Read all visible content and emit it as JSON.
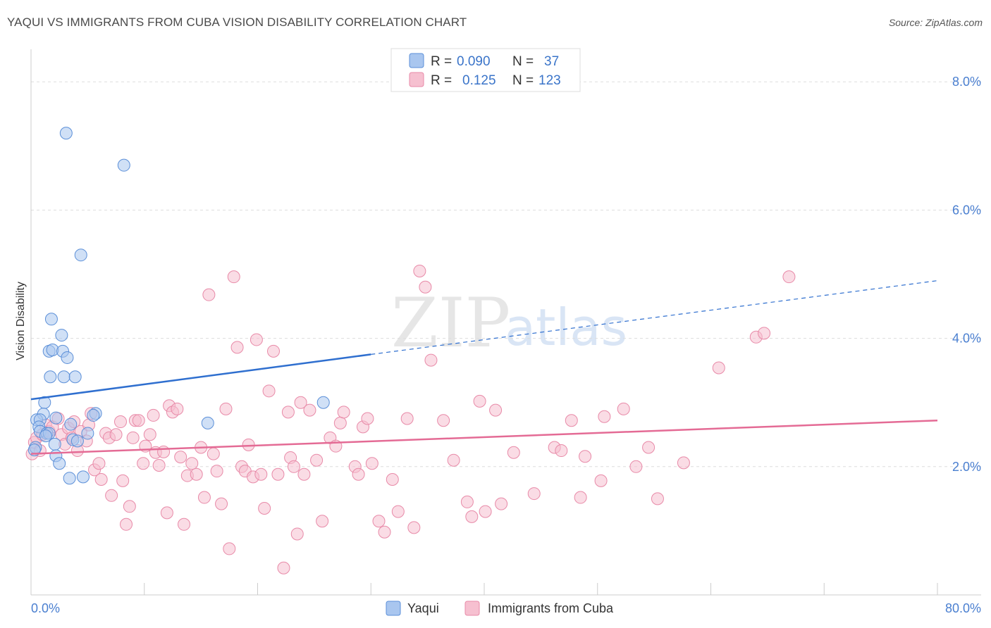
{
  "header": {
    "title": "YAQUI VS IMMIGRANTS FROM CUBA VISION DISABILITY CORRELATION CHART",
    "source": "Source: ZipAtlas.com"
  },
  "watermark": {
    "part1": "ZIP",
    "part2": "atlas"
  },
  "colors": {
    "blue_fill": "#a9c6ef",
    "blue_stroke": "#5b8fd8",
    "blue_line": "#2f6fcf",
    "pink_fill": "#f6c0d0",
    "pink_stroke": "#e88aa8",
    "pink_line": "#e46b95",
    "tick_text": "#4a7fd0"
  },
  "legend": {
    "rows": [
      {
        "r_label": "R =",
        "r_value": "0.090",
        "n_label": "N =",
        "n_value": "37",
        "series": "blue"
      },
      {
        "r_label": "R =",
        "r_value": "0.125",
        "n_label": "N =",
        "n_value": "123",
        "series": "pink"
      }
    ]
  },
  "chart_data": {
    "type": "scatter",
    "title": "YAQUI VS IMMIGRANTS FROM CUBA VISION DISABILITY CORRELATION CHART",
    "xlabel": "",
    "ylabel": "Vision Disability",
    "xlim": [
      0,
      80
    ],
    "ylim": [
      0,
      8.4
    ],
    "x_tick_labels": {
      "min": "0.0%",
      "max": "80.0%"
    },
    "y_ticks": [
      {
        "value": 2,
        "label": "2.0%"
      },
      {
        "value": 4,
        "label": "4.0%"
      },
      {
        "value": 6,
        "label": "6.0%"
      },
      {
        "value": 8,
        "label": "8.0%"
      }
    ],
    "series": [
      {
        "name": "Yaqui",
        "color": "blue",
        "trend": {
          "x0": 0,
          "y0": 3.05,
          "x1": 30,
          "y1": 3.75,
          "dash_to_x": 80,
          "dash_to_y": 4.9
        },
        "points": [
          [
            3.1,
            7.2
          ],
          [
            8.2,
            6.7
          ],
          [
            4.4,
            5.3
          ],
          [
            1.8,
            4.3
          ],
          [
            2.7,
            4.05
          ],
          [
            1.6,
            3.8
          ],
          [
            1.9,
            3.82
          ],
          [
            2.8,
            3.8
          ],
          [
            3.2,
            3.7
          ],
          [
            1.7,
            3.4
          ],
          [
            2.9,
            3.4
          ],
          [
            3.9,
            3.4
          ],
          [
            1.2,
            3.0
          ],
          [
            1.1,
            2.82
          ],
          [
            0.5,
            2.73
          ],
          [
            0.8,
            2.73
          ],
          [
            2.2,
            2.76
          ],
          [
            5.7,
            2.83
          ],
          [
            5.5,
            2.8
          ],
          [
            3.5,
            2.66
          ],
          [
            0.7,
            2.62
          ],
          [
            0.8,
            2.55
          ],
          [
            1.4,
            2.52
          ],
          [
            1.6,
            2.52
          ],
          [
            1.3,
            2.48
          ],
          [
            5.0,
            2.52
          ],
          [
            3.7,
            2.42
          ],
          [
            4.1,
            2.4
          ],
          [
            0.4,
            2.3
          ],
          [
            2.1,
            2.35
          ],
          [
            2.2,
            2.17
          ],
          [
            0.3,
            2.26
          ],
          [
            2.5,
            2.05
          ],
          [
            3.4,
            1.82
          ],
          [
            4.6,
            1.84
          ],
          [
            15.6,
            2.68
          ],
          [
            25.8,
            3.0
          ]
        ]
      },
      {
        "name": "Immigrants from Cuba",
        "color": "pink",
        "trend": {
          "x0": 0,
          "y0": 2.2,
          "x1": 80,
          "y1": 2.72
        },
        "points": [
          [
            0.1,
            2.2
          ],
          [
            0.3,
            2.38
          ],
          [
            0.5,
            2.45
          ],
          [
            0.8,
            2.25
          ],
          [
            1.0,
            2.5
          ],
          [
            1.3,
            2.65
          ],
          [
            1.6,
            2.55
          ],
          [
            1.9,
            2.62
          ],
          [
            2.4,
            2.75
          ],
          [
            2.7,
            2.5
          ],
          [
            3.0,
            2.35
          ],
          [
            3.3,
            2.6
          ],
          [
            3.6,
            2.45
          ],
          [
            3.8,
            2.7
          ],
          [
            4.1,
            2.25
          ],
          [
            4.4,
            2.55
          ],
          [
            4.9,
            2.4
          ],
          [
            5.1,
            2.65
          ],
          [
            5.3,
            2.83
          ],
          [
            5.6,
            1.95
          ],
          [
            6.0,
            2.05
          ],
          [
            6.2,
            1.8
          ],
          [
            6.6,
            2.52
          ],
          [
            6.9,
            2.45
          ],
          [
            7.1,
            1.55
          ],
          [
            7.5,
            2.5
          ],
          [
            7.9,
            2.7
          ],
          [
            8.1,
            1.78
          ],
          [
            8.4,
            1.1
          ],
          [
            8.7,
            1.38
          ],
          [
            9.0,
            2.45
          ],
          [
            9.2,
            2.72
          ],
          [
            9.5,
            2.72
          ],
          [
            9.9,
            2.05
          ],
          [
            10.1,
            2.32
          ],
          [
            10.5,
            2.5
          ],
          [
            10.8,
            2.8
          ],
          [
            11.0,
            2.22
          ],
          [
            11.3,
            2.02
          ],
          [
            11.7,
            2.23
          ],
          [
            12.0,
            1.28
          ],
          [
            12.2,
            2.95
          ],
          [
            12.5,
            2.85
          ],
          [
            12.9,
            2.9
          ],
          [
            13.2,
            2.15
          ],
          [
            13.5,
            1.1
          ],
          [
            13.8,
            1.86
          ],
          [
            14.2,
            2.05
          ],
          [
            14.6,
            1.88
          ],
          [
            15.0,
            2.3
          ],
          [
            15.3,
            1.52
          ],
          [
            15.7,
            4.68
          ],
          [
            16.1,
            2.2
          ],
          [
            16.4,
            1.93
          ],
          [
            16.8,
            1.42
          ],
          [
            17.2,
            2.9
          ],
          [
            17.5,
            0.72
          ],
          [
            17.9,
            4.96
          ],
          [
            18.2,
            3.86
          ],
          [
            18.6,
            2.0
          ],
          [
            18.9,
            1.93
          ],
          [
            19.2,
            2.34
          ],
          [
            19.6,
            1.84
          ],
          [
            19.9,
            3.98
          ],
          [
            20.3,
            1.88
          ],
          [
            20.6,
            1.35
          ],
          [
            21.0,
            3.18
          ],
          [
            21.4,
            3.8
          ],
          [
            21.8,
            1.88
          ],
          [
            22.3,
            0.42
          ],
          [
            22.7,
            2.85
          ],
          [
            22.9,
            2.14
          ],
          [
            23.2,
            2.0
          ],
          [
            23.5,
            0.95
          ],
          [
            23.8,
            3.0
          ],
          [
            24.1,
            1.88
          ],
          [
            24.6,
            2.88
          ],
          [
            25.2,
            2.1
          ],
          [
            25.7,
            1.15
          ],
          [
            26.4,
            2.45
          ],
          [
            26.9,
            2.32
          ],
          [
            27.3,
            2.68
          ],
          [
            27.6,
            2.85
          ],
          [
            28.6,
            2.0
          ],
          [
            28.9,
            1.88
          ],
          [
            29.3,
            2.62
          ],
          [
            29.7,
            2.75
          ],
          [
            30.1,
            2.05
          ],
          [
            30.7,
            1.15
          ],
          [
            31.2,
            0.98
          ],
          [
            31.9,
            1.8
          ],
          [
            32.4,
            1.3
          ],
          [
            33.2,
            2.75
          ],
          [
            33.8,
            1.05
          ],
          [
            34.3,
            5.05
          ],
          [
            34.8,
            4.8
          ],
          [
            35.3,
            3.66
          ],
          [
            36.4,
            2.72
          ],
          [
            37.3,
            2.1
          ],
          [
            38.5,
            1.45
          ],
          [
            38.9,
            1.22
          ],
          [
            39.6,
            3.02
          ],
          [
            40.1,
            1.3
          ],
          [
            41.0,
            2.88
          ],
          [
            41.5,
            1.42
          ],
          [
            42.6,
            2.22
          ],
          [
            44.4,
            1.58
          ],
          [
            46.2,
            2.3
          ],
          [
            46.8,
            2.25
          ],
          [
            47.7,
            2.72
          ],
          [
            48.5,
            1.52
          ],
          [
            48.9,
            2.16
          ],
          [
            50.3,
            1.78
          ],
          [
            50.6,
            2.78
          ],
          [
            52.3,
            2.9
          ],
          [
            53.4,
            2.0
          ],
          [
            54.5,
            2.3
          ],
          [
            55.3,
            1.5
          ],
          [
            57.6,
            2.06
          ],
          [
            60.7,
            3.54
          ],
          [
            64.0,
            4.02
          ],
          [
            64.7,
            4.08
          ],
          [
            66.9,
            4.96
          ]
        ]
      }
    ],
    "legend_labels": [
      "Yaqui",
      "Immigrants from Cuba"
    ]
  }
}
